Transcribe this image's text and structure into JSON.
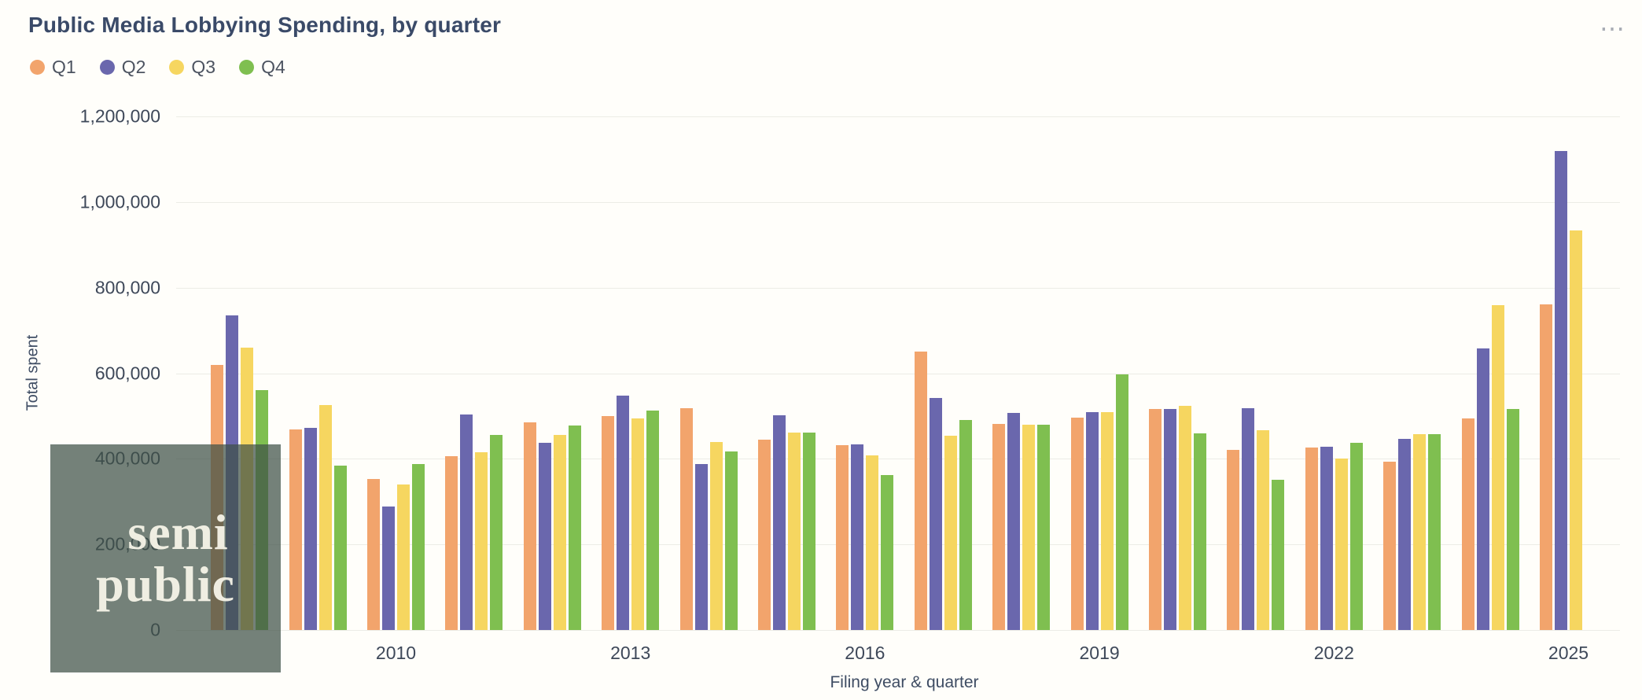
{
  "header": {
    "more_options_icon": "⋯"
  },
  "chart_data": {
    "type": "bar",
    "title": "Public Media Lobbying Spending, by quarter",
    "xlabel": "Filing year & quarter",
    "ylabel": "Total spent",
    "ylim": [
      0,
      1200000
    ],
    "grid": "horizontal",
    "legend_position": "top-left",
    "y_ticks": [
      0,
      200000,
      400000,
      600000,
      800000,
      1000000,
      1200000
    ],
    "categories": [
      2008,
      2009,
      2010,
      2011,
      2012,
      2013,
      2014,
      2015,
      2016,
      2017,
      2018,
      2019,
      2020,
      2021,
      2022,
      2023,
      2024,
      2025
    ],
    "x_tick_labels": [
      "2010",
      "2013",
      "2016",
      "2019",
      "2022",
      "2025"
    ],
    "series": [
      {
        "name": "Q1",
        "color": "#F2A46C",
        "values": [
          620000,
          468000,
          352000,
          406000,
          486000,
          500000,
          518000,
          444000,
          431000,
          650000,
          481000,
          497000,
          517000,
          421000,
          427000,
          394000,
          494000,
          760000
        ]
      },
      {
        "name": "Q2",
        "color": "#6A67AD",
        "values": [
          735000,
          472000,
          288000,
          503000,
          438000,
          548000,
          388000,
          502000,
          433000,
          542000,
          507000,
          509000,
          517000,
          519000,
          429000,
          447000,
          657000,
          1120000
        ]
      },
      {
        "name": "Q3",
        "color": "#F6D660",
        "values": [
          660000,
          525000,
          340000,
          416000,
          456000,
          494000,
          440000,
          461000,
          408000,
          453000,
          479000,
          509000,
          524000,
          466000,
          400000,
          457000,
          759000,
          933000
        ]
      },
      {
        "name": "Q4",
        "color": "#7FBF50",
        "values": [
          560000,
          384000,
          388000,
          456000,
          478000,
          512000,
          417000,
          461000,
          362000,
          491000,
          479000,
          597000,
          459000,
          351000,
          437000,
          457000,
          517000,
          null
        ]
      }
    ]
  },
  "watermark": {
    "line1": "semi",
    "line2": "public"
  }
}
